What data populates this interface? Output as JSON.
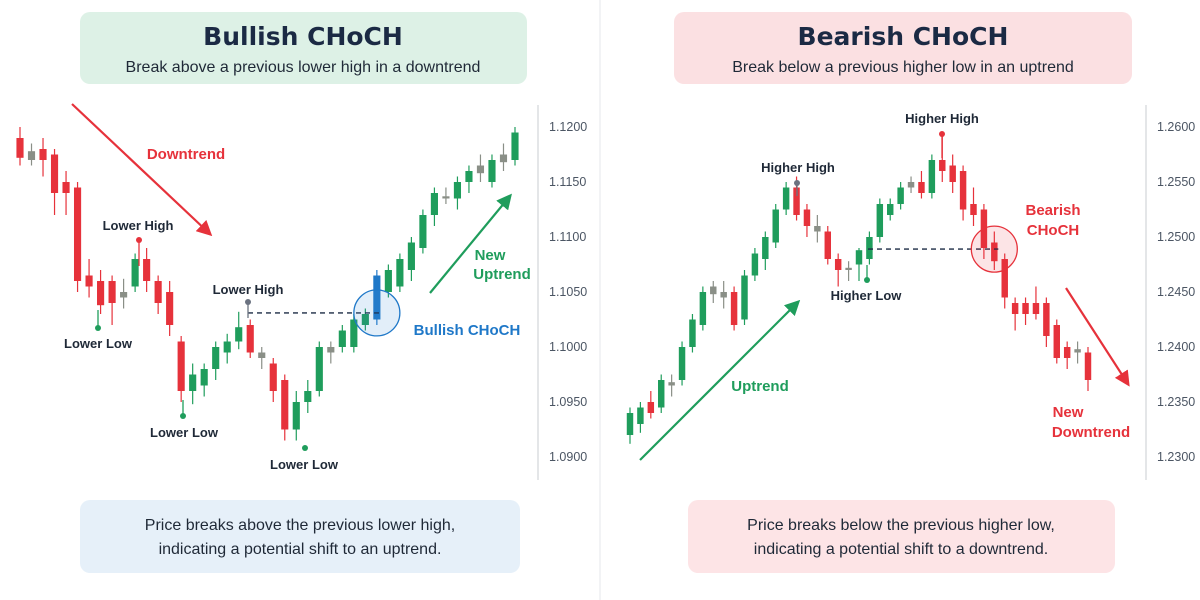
{
  "colors": {
    "bull": "#1f9d5c",
    "bear": "#e6323b",
    "neutral": "#8a8f87",
    "choch_bull": "#1f78c8",
    "panel_bull_bg": "#ddf1e6",
    "panel_bear_bg": "#fbe0e2",
    "note_bull_bg": "#e6f0f9",
    "note_bear_bg": "#fde4e6",
    "title_text": "#1b2a44"
  },
  "bullish": {
    "title": "Bullish CHoCH",
    "subtitle": "Break above a previous lower high in a downtrend",
    "note_lines": [
      "Price breaks above the previous lower high,",
      "indicating a potential shift to an uptrend."
    ],
    "labels": {
      "downtrend": "Downtrend",
      "lower_high_1": "Lower High",
      "lower_low_1": "Lower Low",
      "lower_low_2": "Lower Low",
      "lower_high_2": "Lower High",
      "lower_low_3": "Lower Low",
      "choch": "Bullish CHoCH",
      "new_trend_line1": "New",
      "new_trend_line2": "Uptrend"
    }
  },
  "bearish": {
    "title": "Bearish CHoCH",
    "subtitle": "Break below a previous higher low in an uptrend",
    "note_lines": [
      "Price breaks below the previous higher low,",
      "indicating a potential shift to a downtrend."
    ],
    "labels": {
      "uptrend": "Uptrend",
      "higher_high_1": "Higher High",
      "higher_high_2": "Higher High",
      "higher_low": "Higher Low",
      "choch_line1": "Bearish",
      "choch_line2": "CHoCH",
      "new_trend_line1": "New",
      "new_trend_line2": "Downtrend"
    }
  },
  "chart_data": [
    {
      "type": "candlestick",
      "title": "Bullish CHoCH",
      "y_ticks": [
        "1.1200",
        "1.1150",
        "1.1100",
        "1.1050",
        "1.1000",
        "1.0950",
        "1.0900"
      ],
      "ylim": [
        1.088,
        1.1225
      ],
      "break_level": 1.1031,
      "candles": [
        {
          "o": 1.119,
          "h": 1.12,
          "l": 1.1165,
          "c": 1.1172
        },
        {
          "o": 1.1178,
          "h": 1.1185,
          "l": 1.1165,
          "c": 1.117
        },
        {
          "o": 1.118,
          "h": 1.119,
          "l": 1.1155,
          "c": 1.117
        },
        {
          "o": 1.1175,
          "h": 1.118,
          "l": 1.112,
          "c": 1.114
        },
        {
          "o": 1.115,
          "h": 1.116,
          "l": 1.112,
          "c": 1.114
        },
        {
          "o": 1.1145,
          "h": 1.115,
          "l": 1.105,
          "c": 1.106
        },
        {
          "o": 1.1065,
          "h": 1.108,
          "l": 1.1045,
          "c": 1.1055
        },
        {
          "o": 1.106,
          "h": 1.107,
          "l": 1.103,
          "c": 1.1038
        },
        {
          "o": 1.106,
          "h": 1.1065,
          "l": 1.102,
          "c": 1.104
        },
        {
          "o": 1.1045,
          "h": 1.1062,
          "l": 1.1035,
          "c": 1.105
        },
        {
          "o": 1.1055,
          "h": 1.1085,
          "l": 1.105,
          "c": 1.108
        },
        {
          "o": 1.108,
          "h": 1.109,
          "l": 1.105,
          "c": 1.106
        },
        {
          "o": 1.106,
          "h": 1.1065,
          "l": 1.103,
          "c": 1.104
        },
        {
          "o": 1.105,
          "h": 1.106,
          "l": 1.101,
          "c": 1.102
        },
        {
          "o": 1.1005,
          "h": 1.101,
          "l": 1.095,
          "c": 1.096
        },
        {
          "o": 1.096,
          "h": 1.0985,
          "l": 1.0948,
          "c": 1.0975
        },
        {
          "o": 1.0965,
          "h": 1.0985,
          "l": 1.0955,
          "c": 1.098
        },
        {
          "o": 1.098,
          "h": 1.1005,
          "l": 1.097,
          "c": 1.1
        },
        {
          "o": 1.0995,
          "h": 1.1012,
          "l": 1.0985,
          "c": 1.1005
        },
        {
          "o": 1.1005,
          "h": 1.1032,
          "l": 1.0998,
          "c": 1.1018
        },
        {
          "o": 1.102,
          "h": 1.1025,
          "l": 1.099,
          "c": 1.0995
        },
        {
          "o": 1.0995,
          "h": 1.1,
          "l": 1.098,
          "c": 1.099
        },
        {
          "o": 1.0985,
          "h": 1.099,
          "l": 1.095,
          "c": 1.096
        },
        {
          "o": 1.097,
          "h": 1.0975,
          "l": 1.0915,
          "c": 1.0925
        },
        {
          "o": 1.0925,
          "h": 1.096,
          "l": 1.0915,
          "c": 1.095
        },
        {
          "o": 1.095,
          "h": 1.097,
          "l": 1.094,
          "c": 1.096
        },
        {
          "o": 1.096,
          "h": 1.1005,
          "l": 1.0955,
          "c": 1.1
        },
        {
          "o": 1.0995,
          "h": 1.1005,
          "l": 1.0985,
          "c": 1.1
        },
        {
          "o": 1.1,
          "h": 1.102,
          "l": 1.0995,
          "c": 1.1015
        },
        {
          "o": 1.1,
          "h": 1.103,
          "l": 1.0995,
          "c": 1.1025
        },
        {
          "o": 1.102,
          "h": 1.1035,
          "l": 1.1015,
          "c": 1.103
        },
        {
          "o": 1.1025,
          "h": 1.107,
          "l": 1.102,
          "c": 1.1065,
          "choch": true
        },
        {
          "o": 1.105,
          "h": 1.1075,
          "l": 1.1045,
          "c": 1.107
        },
        {
          "o": 1.1055,
          "h": 1.1085,
          "l": 1.105,
          "c": 1.108
        },
        {
          "o": 1.107,
          "h": 1.11,
          "l": 1.106,
          "c": 1.1095
        },
        {
          "o": 1.109,
          "h": 1.1125,
          "l": 1.1085,
          "c": 1.112
        },
        {
          "o": 1.112,
          "h": 1.1145,
          "l": 1.111,
          "c": 1.114
        },
        {
          "o": 1.1135,
          "h": 1.1145,
          "l": 1.113,
          "c": 1.1137
        },
        {
          "o": 1.1135,
          "h": 1.1155,
          "l": 1.1125,
          "c": 1.115
        },
        {
          "o": 1.115,
          "h": 1.1165,
          "l": 1.114,
          "c": 1.116
        },
        {
          "o": 1.1165,
          "h": 1.1175,
          "l": 1.115,
          "c": 1.1158
        },
        {
          "o": 1.115,
          "h": 1.1175,
          "l": 1.1145,
          "c": 1.117
        },
        {
          "o": 1.1175,
          "h": 1.1185,
          "l": 1.116,
          "c": 1.1168
        },
        {
          "o": 1.117,
          "h": 1.12,
          "l": 1.1165,
          "c": 1.1195
        }
      ]
    },
    {
      "type": "candlestick",
      "title": "Bearish CHoCH",
      "y_ticks": [
        "1.2600",
        "1.2550",
        "1.2500",
        "1.2450",
        "1.2400",
        "1.2350",
        "1.2300"
      ],
      "ylim": [
        1.228,
        1.2625
      ],
      "break_level": 1.2489,
      "candles": [
        {
          "o": 1.232,
          "h": 1.2345,
          "l": 1.2312,
          "c": 1.234
        },
        {
          "o": 1.233,
          "h": 1.235,
          "l": 1.2322,
          "c": 1.2345
        },
        {
          "o": 1.235,
          "h": 1.236,
          "l": 1.2335,
          "c": 1.234
        },
        {
          "o": 1.2345,
          "h": 1.2375,
          "l": 1.234,
          "c": 1.237
        },
        {
          "o": 1.2365,
          "h": 1.2375,
          "l": 1.2355,
          "c": 1.2368
        },
        {
          "o": 1.237,
          "h": 1.2405,
          "l": 1.2365,
          "c": 1.24
        },
        {
          "o": 1.24,
          "h": 1.243,
          "l": 1.2395,
          "c": 1.2425
        },
        {
          "o": 1.242,
          "h": 1.2455,
          "l": 1.2415,
          "c": 1.245
        },
        {
          "o": 1.2455,
          "h": 1.246,
          "l": 1.244,
          "c": 1.2448
        },
        {
          "o": 1.2445,
          "h": 1.246,
          "l": 1.2435,
          "c": 1.245
        },
        {
          "o": 1.245,
          "h": 1.2455,
          "l": 1.2415,
          "c": 1.242
        },
        {
          "o": 1.2425,
          "h": 1.247,
          "l": 1.242,
          "c": 1.2465
        },
        {
          "o": 1.2465,
          "h": 1.249,
          "l": 1.246,
          "c": 1.2485
        },
        {
          "o": 1.248,
          "h": 1.2505,
          "l": 1.247,
          "c": 1.25
        },
        {
          "o": 1.2495,
          "h": 1.253,
          "l": 1.249,
          "c": 1.2525
        },
        {
          "o": 1.2525,
          "h": 1.255,
          "l": 1.252,
          "c": 1.2545
        },
        {
          "o": 1.2545,
          "h": 1.2555,
          "l": 1.2515,
          "c": 1.252
        },
        {
          "o": 1.2525,
          "h": 1.253,
          "l": 1.25,
          "c": 1.251
        },
        {
          "o": 1.251,
          "h": 1.252,
          "l": 1.2495,
          "c": 1.2505
        },
        {
          "o": 1.2505,
          "h": 1.251,
          "l": 1.2475,
          "c": 1.248
        },
        {
          "o": 1.248,
          "h": 1.2485,
          "l": 1.2455,
          "c": 1.247
        },
        {
          "o": 1.247,
          "h": 1.2478,
          "l": 1.246,
          "c": 1.2472
        },
        {
          "o": 1.2475,
          "h": 1.249,
          "l": 1.246,
          "c": 1.2488
        },
        {
          "o": 1.248,
          "h": 1.2505,
          "l": 1.2475,
          "c": 1.25
        },
        {
          "o": 1.25,
          "h": 1.2535,
          "l": 1.2495,
          "c": 1.253
        },
        {
          "o": 1.252,
          "h": 1.2535,
          "l": 1.2515,
          "c": 1.253
        },
        {
          "o": 1.253,
          "h": 1.255,
          "l": 1.2525,
          "c": 1.2545
        },
        {
          "o": 1.2545,
          "h": 1.2555,
          "l": 1.254,
          "c": 1.255
        },
        {
          "o": 1.255,
          "h": 1.256,
          "l": 1.2535,
          "c": 1.254
        },
        {
          "o": 1.254,
          "h": 1.2575,
          "l": 1.2535,
          "c": 1.257
        },
        {
          "o": 1.257,
          "h": 1.2595,
          "l": 1.255,
          "c": 1.256
        },
        {
          "o": 1.2565,
          "h": 1.2575,
          "l": 1.254,
          "c": 1.255
        },
        {
          "o": 1.256,
          "h": 1.2565,
          "l": 1.2515,
          "c": 1.2525
        },
        {
          "o": 1.253,
          "h": 1.2545,
          "l": 1.251,
          "c": 1.252
        },
        {
          "o": 1.2525,
          "h": 1.253,
          "l": 1.248,
          "c": 1.249
        },
        {
          "o": 1.2495,
          "h": 1.2505,
          "l": 1.247,
          "c": 1.2478,
          "choch": true
        },
        {
          "o": 1.248,
          "h": 1.2485,
          "l": 1.2435,
          "c": 1.2445
        },
        {
          "o": 1.244,
          "h": 1.2445,
          "l": 1.2415,
          "c": 1.243
        },
        {
          "o": 1.244,
          "h": 1.2445,
          "l": 1.242,
          "c": 1.243
        },
        {
          "o": 1.244,
          "h": 1.2455,
          "l": 1.2425,
          "c": 1.243
        },
        {
          "o": 1.244,
          "h": 1.2445,
          "l": 1.24,
          "c": 1.241
        },
        {
          "o": 1.242,
          "h": 1.2425,
          "l": 1.2385,
          "c": 1.239
        },
        {
          "o": 1.24,
          "h": 1.2405,
          "l": 1.238,
          "c": 1.239
        },
        {
          "o": 1.2395,
          "h": 1.2405,
          "l": 1.2385,
          "c": 1.2398
        },
        {
          "o": 1.2395,
          "h": 1.24,
          "l": 1.236,
          "c": 1.237
        }
      ]
    }
  ]
}
